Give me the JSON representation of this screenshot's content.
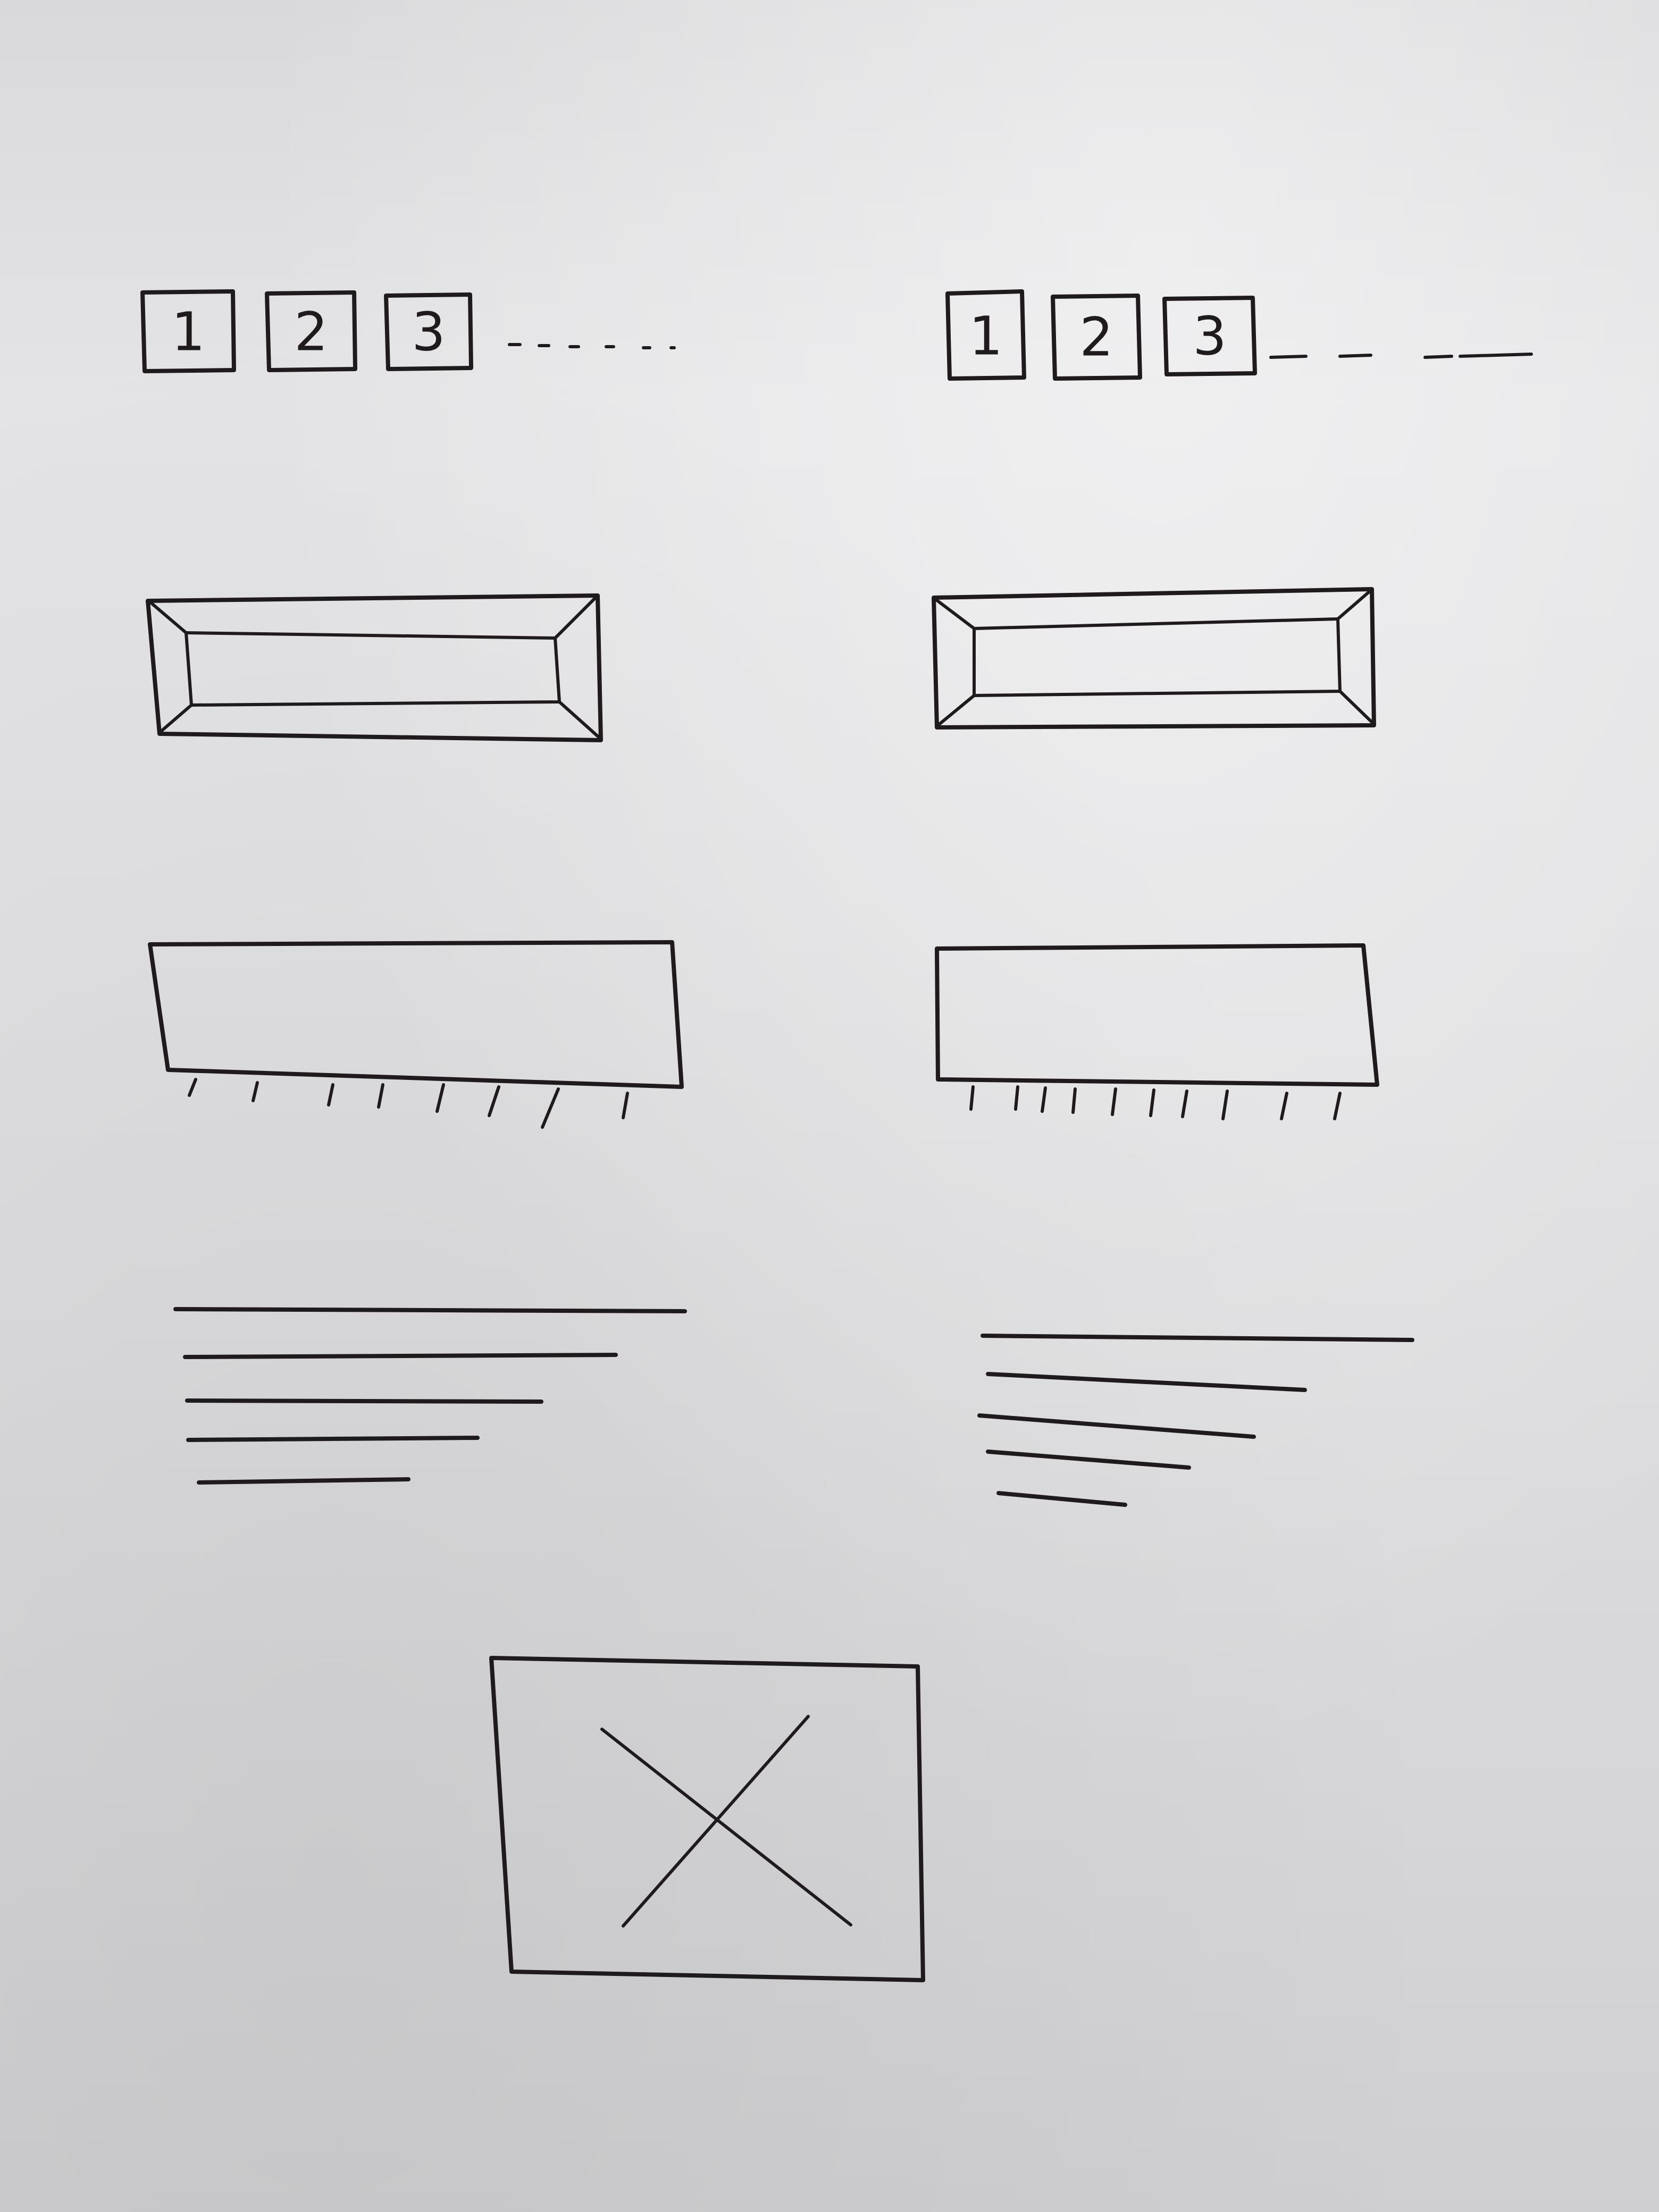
{
  "pagination": {
    "left": [
      "1",
      "2",
      "3"
    ],
    "right": [
      "1",
      "2",
      "3"
    ]
  }
}
